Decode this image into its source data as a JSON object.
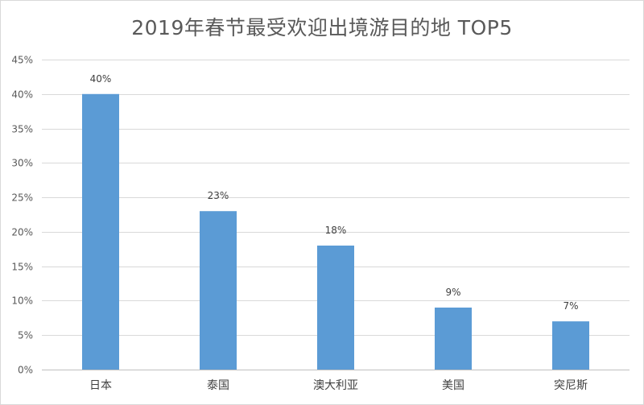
{
  "chart_data": {
    "type": "bar",
    "title": "2019年春节最受欢迎出境游目的地 TOP5",
    "categories": [
      "日本",
      "泰国",
      "澳大利亚",
      "美国",
      "突尼斯"
    ],
    "values": [
      40,
      23,
      18,
      9,
      7
    ],
    "data_labels": [
      "40%",
      "23%",
      "18%",
      "9%",
      "7%"
    ],
    "y_ticks": [
      "0%",
      "5%",
      "10%",
      "15%",
      "20%",
      "25%",
      "30%",
      "35%",
      "40%",
      "45%"
    ],
    "ylim": [
      0,
      45
    ],
    "grid": true,
    "legend": "none",
    "bar_color": "#5b9bd5",
    "grid_color": "#d9d9d9"
  }
}
